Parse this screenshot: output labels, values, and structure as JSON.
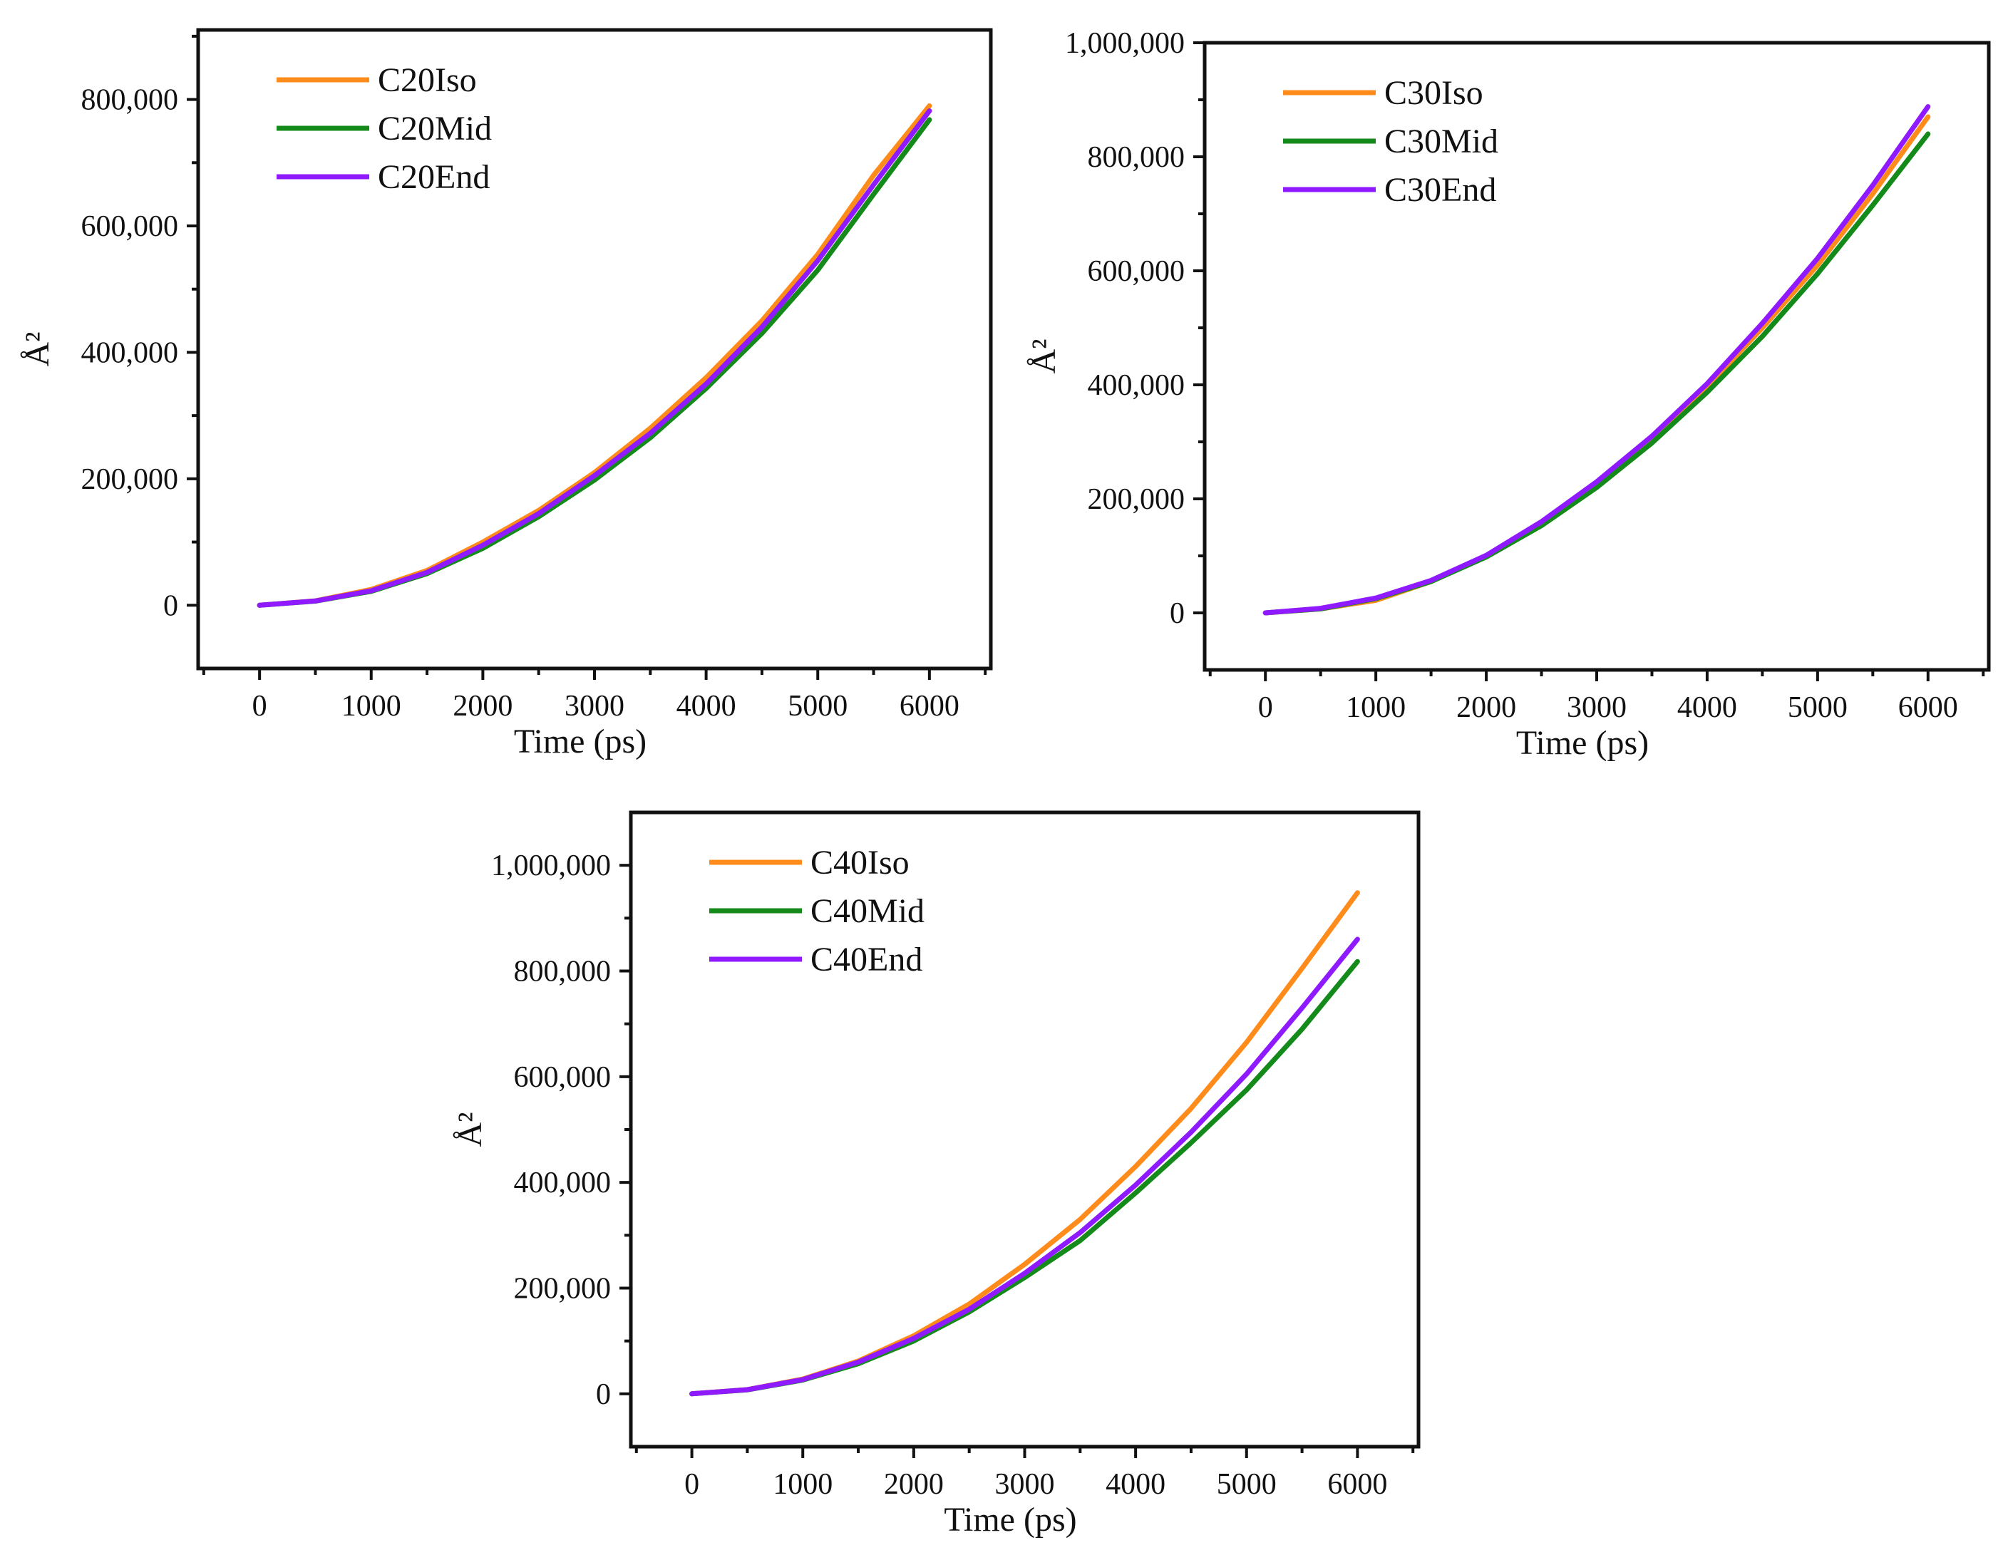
{
  "figure_title": "",
  "colors": {
    "Iso": "#ff8c1a",
    "Mid": "#138a1a",
    "End": "#8f1aff"
  },
  "chart_data": [
    {
      "type": "line",
      "id": "c20",
      "title": "",
      "xlabel": "Time (ps)",
      "ylabel": "Å²",
      "xlim": [
        -550,
        6550
      ],
      "ylim": [
        -100000,
        910000
      ],
      "xticks": [
        0,
        1000,
        2000,
        3000,
        4000,
        5000,
        6000
      ],
      "xtick_labels": [
        "0",
        "1000",
        "2000",
        "3000",
        "4000",
        "5000",
        "6000"
      ],
      "yticks": [
        0,
        200000,
        400000,
        600000,
        800000
      ],
      "ytick_labels": [
        "0",
        "200,000",
        "400,000",
        "600,000",
        "800,000"
      ],
      "legend_position": "top-left",
      "x": [
        0,
        500,
        1000,
        1500,
        2000,
        2500,
        3000,
        3500,
        4000,
        4500,
        5000,
        5500,
        6000
      ],
      "series": [
        {
          "name": "C20Iso",
          "key": "Iso",
          "values": [
            0,
            7000,
            25000,
            55000,
            100000,
            150000,
            210000,
            280000,
            360000,
            450000,
            555000,
            680000,
            790000
          ]
        },
        {
          "name": "C20Mid",
          "key": "Mid",
          "values": [
            0,
            6500,
            22000,
            50000,
            90000,
            140000,
            198000,
            265000,
            343000,
            430000,
            530000,
            650000,
            768000
          ]
        },
        {
          "name": "C20End",
          "key": "End",
          "values": [
            0,
            6800,
            23000,
            52000,
            95000,
            145000,
            205000,
            272000,
            350000,
            440000,
            545000,
            665000,
            782000
          ]
        }
      ]
    },
    {
      "type": "line",
      "id": "c30",
      "title": "",
      "xlabel": "Time (ps)",
      "ylabel": "Å²",
      "xlim": [
        -550,
        6550
      ],
      "ylim": [
        -100000,
        1000000
      ],
      "xticks": [
        0,
        1000,
        2000,
        3000,
        4000,
        5000,
        6000
      ],
      "xtick_labels": [
        "0",
        "1000",
        "2000",
        "3000",
        "4000",
        "5000",
        "6000"
      ],
      "yticks": [
        0,
        200000,
        400000,
        600000,
        800000,
        1000000
      ],
      "ytick_labels": [
        "0",
        "200,000",
        "400,000",
        "600,000",
        "800,000",
        "1,000,000"
      ],
      "legend_position": "top-left",
      "x": [
        0,
        500,
        1000,
        1500,
        2000,
        2500,
        3000,
        3500,
        4000,
        4500,
        5000,
        5500,
        6000
      ],
      "series": [
        {
          "name": "C30Iso",
          "key": "Iso",
          "values": [
            0,
            7000,
            22000,
            55000,
            100000,
            158000,
            225000,
            305000,
            397000,
            500000,
            610000,
            735000,
            870000
          ]
        },
        {
          "name": "C30Mid",
          "key": "Mid",
          "values": [
            0,
            7000,
            25000,
            55000,
            98000,
            153000,
            220000,
            298000,
            387000,
            485000,
            595000,
            715000,
            840000
          ]
        },
        {
          "name": "C30End",
          "key": "End",
          "values": [
            0,
            8000,
            26000,
            57000,
            101000,
            160000,
            230000,
            310000,
            402000,
            508000,
            622000,
            750000,
            888000
          ]
        }
      ]
    },
    {
      "type": "line",
      "id": "c40",
      "title": "",
      "xlabel": "Time (ps)",
      "ylabel": "Å²",
      "xlim": [
        -550,
        6550
      ],
      "ylim": [
        -100000,
        1100000
      ],
      "xticks": [
        0,
        1000,
        2000,
        3000,
        4000,
        5000,
        6000
      ],
      "xtick_labels": [
        "0",
        "1000",
        "2000",
        "3000",
        "4000",
        "5000",
        "6000"
      ],
      "yticks": [
        0,
        200000,
        400000,
        600000,
        800000,
        1000000
      ],
      "ytick_labels": [
        "0",
        "200,000",
        "400,000",
        "600,000",
        "800,000",
        "1,000,000"
      ],
      "legend_position": "top-left",
      "x": [
        0,
        500,
        1000,
        1500,
        2000,
        2500,
        3000,
        3500,
        4000,
        4500,
        5000,
        5500,
        6000
      ],
      "series": [
        {
          "name": "C40Iso",
          "key": "Iso",
          "values": [
            0,
            8000,
            28000,
            62000,
            110000,
            170000,
            245000,
            330000,
            430000,
            540000,
            665000,
            805000,
            948000
          ]
        },
        {
          "name": "C40Mid",
          "key": "Mid",
          "values": [
            0,
            7500,
            26000,
            57000,
            100000,
            155000,
            220000,
            290000,
            380000,
            475000,
            575000,
            690000,
            818000
          ]
        },
        {
          "name": "C40End",
          "key": "End",
          "values": [
            0,
            7800,
            27000,
            60000,
            105000,
            160000,
            228000,
            305000,
            395000,
            495000,
            605000,
            730000,
            860000
          ]
        }
      ]
    }
  ]
}
